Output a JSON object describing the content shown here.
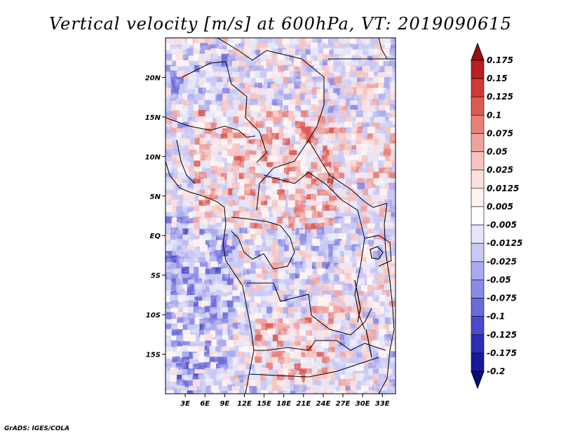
{
  "chart_data": {
    "type": "heatmap",
    "title": "Vertical velocity [m/s] at 600hPa, VT: 2019090615",
    "x_tick_labels": [
      "3E",
      "6E",
      "9E",
      "12E",
      "15E",
      "18E",
      "21E",
      "24E",
      "27E",
      "30E",
      "33E"
    ],
    "x_tick_values": [
      3,
      6,
      9,
      12,
      15,
      18,
      21,
      24,
      27,
      30,
      33
    ],
    "y_tick_labels": [
      "20N",
      "15N",
      "10N",
      "5N",
      "EQ",
      "5S",
      "10S",
      "15S"
    ],
    "y_tick_values": [
      20,
      15,
      10,
      5,
      0,
      -5,
      -10,
      -15
    ],
    "xlim": [
      0,
      35
    ],
    "ylim": [
      -20,
      25
    ],
    "colorbar": {
      "labels": [
        "0.175",
        "0.15",
        "0.125",
        "0.1",
        "0.075",
        "0.05",
        "0.025",
        "0.0125",
        "0.005",
        "-0.005",
        "-0.0125",
        "-0.025",
        "-0.05",
        "-0.075",
        "-0.1",
        "-0.125",
        "-0.175",
        "-0.2"
      ],
      "colors": [
        "#9e0d16",
        "#b81e22",
        "#cf3a36",
        "#dd5a52",
        "#e8807a",
        "#f0a39e",
        "#f6c4c0",
        "#fbe0de",
        "#fff3f2",
        "#ffffff",
        "#e6e6fa",
        "#c9c9f4",
        "#aaaaee",
        "#8b8be6",
        "#6a6adb",
        "#4a4acc",
        "#2d2db8",
        "#18189c",
        "#0a0a7a"
      ]
    }
  },
  "credit": "GrADS: IGES/COLA"
}
